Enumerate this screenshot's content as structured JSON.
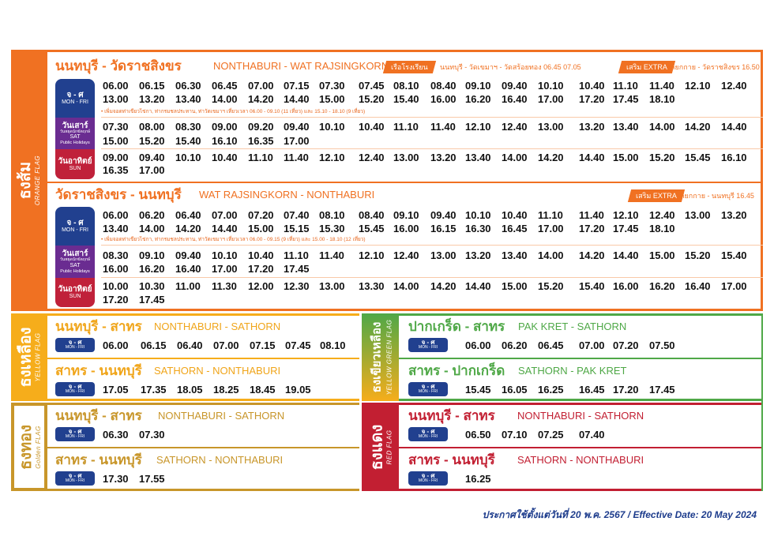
{
  "colors": {
    "orange": "#f07122",
    "yellow": "#f6ad1b",
    "gold": "#c8962a",
    "green": "#4fa847",
    "red": "#c21f32",
    "navy": "#21408f",
    "purple": "#6a2c91",
    "crimson": "#c0213a"
  },
  "days": {
    "mf": {
      "th": "จ - ศ",
      "en": "MON - FRI"
    },
    "sat": {
      "th": "วันเสาร์",
      "sub": "วันหยุดนักขัตฤกษ์",
      "en": "SAT",
      "en2": "Public Holidays"
    },
    "sun": {
      "th": "วันอาทิตย์",
      "en": "SUN"
    }
  },
  "orange": {
    "flag_th": "ธงส้ม",
    "flag_en": "ORANGE FLAG",
    "routes": [
      {
        "title_th": "นนทบุรี - วัดราชสิงขร",
        "title_en": "NONTHABURI - WAT RAJSINGKORN",
        "tags": [
          {
            "label": "เรือโรงเรียน",
            "text": "นนทบุรี - วัดเขมาฯ - วัดสร้อยทอง 06.45   07.05"
          },
          {
            "label": "เสริม EXTRA",
            "text": "เกียกกาย - วัดราชสิงขร 16.50"
          }
        ],
        "schedules": [
          {
            "day": "mf",
            "rows": [
              [
                "06.00",
                "06.15",
                "06.30",
                "06.45",
                "07.00",
                "07.15",
                "07.30",
                "07.45",
                "08.10",
                "08.40",
                "09.10",
                "09.40",
                "10.10",
                "10.40",
                "11.10",
                "11.40",
                "12.10",
                "12.40"
              ],
              [
                "13.00",
                "13.20",
                "13.40",
                "14.00",
                "14.20",
                "14.40",
                "15.00",
                "15.20",
                "15.40",
                "16.00",
                "16.20",
                "16.40",
                "17.00",
                "17.20",
                "17.45",
                "18.10"
              ]
            ],
            "note": "• เพิ่มจอดท่าเขียวไข่กา, ท่ากรมชลประทาน, ท่าวัดเขมาฯ เที่ยวเวลา 06.00 - 09.10 (11 เที่ยว) และ 15.10 - 18.10 (9 เที่ยว)"
          },
          {
            "day": "sat",
            "rows": [
              [
                "07.30",
                "08.00",
                "08.30",
                "09.00",
                "09.20",
                "09.40",
                "10.10",
                "10.40",
                "11.10",
                "11.40",
                "12.10",
                "12.40",
                "13.00",
                "13.20",
                "13.40",
                "14.00",
                "14.20",
                "14.40"
              ],
              [
                "15.00",
                "15.20",
                "15.40",
                "16.10",
                "16.35",
                "17.00"
              ]
            ]
          },
          {
            "day": "sun",
            "rows": [
              [
                "09.00",
                "09.40",
                "10.10",
                "10.40",
                "11.10",
                "11.40",
                "12.10",
                "12.40",
                "13.00",
                "13.20",
                "13.40",
                "14.00",
                "14.20",
                "14.40",
                "15.00",
                "15.20",
                "15.45",
                "16.10"
              ],
              [
                "16.35",
                "17.00"
              ]
            ]
          }
        ]
      },
      {
        "title_th": "วัดราชสิงขร - นนทบุรี",
        "title_en": "WAT RAJSINGKORN - NONTHABURI",
        "tags": [
          {
            "label": "เสริม EXTRA",
            "text": "เกียกกาย - นนทบุรี 16.45"
          }
        ],
        "schedules": [
          {
            "day": "mf",
            "rows": [
              [
                "06.00",
                "06.20",
                "06.40",
                "07.00",
                "07.20",
                "07.40",
                "08.10",
                "08.40",
                "09.10",
                "09.40",
                "10.10",
                "10.40",
                "11.10",
                "11.40",
                "12.10",
                "12.40",
                "13.00",
                "13.20"
              ],
              [
                "13.40",
                "14.00",
                "14.20",
                "14.40",
                "15.00",
                "15.15",
                "15.30",
                "15.45",
                "16.00",
                "16.15",
                "16.30",
                "16.45",
                "17.00",
                "17.20",
                "17.45",
                "18.10"
              ]
            ],
            "note": "• เพิ่มจอดท่าเขียวไข่กา, ท่ากรมชลประทาน, ท่าวัดเขมาฯ เที่ยวเวลา 06.00 - 09.15 (9 เที่ยว) และ 15.00 - 18.10 (12 เที่ยว)"
          },
          {
            "day": "sat",
            "rows": [
              [
                "08.30",
                "09.10",
                "09.40",
                "10.10",
                "10.40",
                "11.10",
                "11.40",
                "12.10",
                "12.40",
                "13.00",
                "13.20",
                "13.40",
                "14.00",
                "14.20",
                "14.40",
                "15.00",
                "15.20",
                "15.40"
              ],
              [
                "16.00",
                "16.20",
                "16.40",
                "17.00",
                "17.20",
                "17.45"
              ]
            ]
          },
          {
            "day": "sun",
            "rows": [
              [
                "10.00",
                "10.30",
                "11.00",
                "11.30",
                "12.00",
                "12.30",
                "13.00",
                "13.30",
                "14.00",
                "14.20",
                "14.40",
                "15.00",
                "15.20",
                "15.40",
                "16.00",
                "16.20",
                "16.40",
                "17.00"
              ],
              [
                "17.20",
                "17.45"
              ]
            ]
          }
        ]
      }
    ]
  },
  "flags": [
    {
      "key": "yellow",
      "flag_th": "ธงเหลือง",
      "flag_en": "YELLOW FLAG",
      "routes": [
        {
          "title_th": "นนทบุรี - สาทร",
          "title_en": "NONTHABURI - SATHORN",
          "day": "mf",
          "times": [
            "06.00",
            "06.15",
            "06.40",
            "07.00",
            "07.15",
            "07.45",
            "08.10"
          ]
        },
        {
          "title_th": "สาทร - นนทบุรี",
          "title_en": "SATHORN - NONTHABURI",
          "day": "mf",
          "times": [
            "17.05",
            "17.35",
            "18.05",
            "18.25",
            "18.45",
            "19.05"
          ]
        }
      ]
    },
    {
      "key": "gold",
      "flag_th": "ธงทอง",
      "flag_en": "Golden FLAG",
      "routes": [
        {
          "title_th": "นนทบุรี - สาทร",
          "title_en": "NONTHABURI - SATHORN",
          "day": "mf",
          "times": [
            "06.30",
            "07.30"
          ]
        },
        {
          "title_th": "สาทร - นนทบุรี",
          "title_en": "SATHORN - NONTHABURI",
          "day": "mf",
          "times": [
            "17.30",
            "17.55"
          ]
        }
      ]
    },
    {
      "key": "green",
      "flag_th": "ธงเขียวเหลือง",
      "flag_en": "YELLOW GREEN FLAG",
      "routes": [
        {
          "title_th": "ปากเกร็ด - สาทร",
          "title_en": "PAK KRET - SATHORN",
          "day": "mf",
          "times": [
            "06.00",
            "06.20",
            "06.45",
            "07.00",
            "07.20",
            "07.50"
          ]
        },
        {
          "title_th": "สาทร - ปากเกร็ด",
          "title_en": "SATHORN - PAK KRET",
          "day": "mf",
          "times": [
            "15.45",
            "16.05",
            "16.25",
            "16.45",
            "17.20",
            "17.45"
          ]
        }
      ]
    },
    {
      "key": "red",
      "flag_th": "ธงแดง",
      "flag_en": "RED FLAG",
      "routes": [
        {
          "title_th": "นนทบุรี - สาทร",
          "title_en": "NONTHABURI - SATHORN",
          "day": "mf",
          "times": [
            "06.50",
            "07.10",
            "07.25",
            "07.40"
          ]
        },
        {
          "title_th": "สาทร - นนทบุรี",
          "title_en": "SATHORN - NONTHABURI",
          "day": "mf",
          "times": [
            "16.25"
          ]
        }
      ]
    }
  ],
  "footer": "ประกาศใช้ตั้งแต่วันที่ 20 พ.ค. 2567 / Effective Date: 20 May 2024"
}
